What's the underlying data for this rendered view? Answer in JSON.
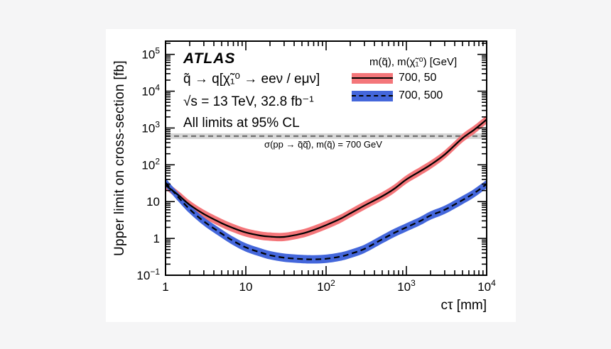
{
  "page": {
    "background_color": "#f5f5f6",
    "canvas_color": "#ffffff"
  },
  "chart_data": {
    "type": "line",
    "title": "ATLAS upper limit on cross-section vs cτ",
    "annotations": {
      "experiment": "ATLAS",
      "process": "q̃ → q[χ̃₁⁰ → eeν / eμν]",
      "energy_lumi": "√s = 13 TeV, 32.8 fb⁻¹",
      "cl_note": "All limits at 95% CL",
      "reference_label": "σ(pp → q̃q̃̄), m(q̃) = 700 GeV"
    },
    "x_axis": {
      "label": "cτ [mm]",
      "scale": "log",
      "range": [
        1,
        10000
      ],
      "ticks": [
        {
          "value": 1,
          "label": "1"
        },
        {
          "value": 10,
          "label": "10"
        },
        {
          "value": 100,
          "label": "10^2"
        },
        {
          "value": 1000,
          "label": "10^3"
        },
        {
          "value": 10000,
          "label": "10^4"
        }
      ]
    },
    "y_axis": {
      "label": "Upper limit on cross-section [fb]",
      "scale": "log",
      "range": [
        0.1,
        230000
      ],
      "ticks": [
        {
          "value": 0.1,
          "label": "10^-1"
        },
        {
          "value": 1,
          "label": "1"
        },
        {
          "value": 10,
          "label": "10"
        },
        {
          "value": 100,
          "label": "10^2"
        },
        {
          "value": 1000,
          "label": "10^3"
        },
        {
          "value": 10000,
          "label": "10^4"
        },
        {
          "value": 100000,
          "label": "10^5"
        }
      ]
    },
    "reference_line": {
      "value_fb": 600,
      "style": "dashed",
      "line_color": "#8a8a8a",
      "band_color": "#d7d7d7"
    },
    "legend": {
      "header": "m(q̃), m(χ̃₁⁰) [GeV]",
      "position": "top-right",
      "entries": [
        {
          "label": "700, 50",
          "band_color": "#f4767a",
          "line_color": "#000000",
          "line_style": "solid"
        },
        {
          "label": "700, 500",
          "band_color": "#4467db",
          "line_color": "#000000",
          "line_style": "dashed"
        }
      ]
    },
    "series": [
      {
        "name": "700, 50",
        "band_color": "#f4767a",
        "line_style": "solid",
        "band_ratio": 1.3,
        "x": [
          1,
          1.5,
          2,
          3,
          5,
          7,
          10,
          15,
          20,
          30,
          50,
          70,
          100,
          150,
          200,
          300,
          500,
          700,
          1000,
          1500,
          2000,
          3000,
          5000,
          7000,
          10000
        ],
        "y": [
          28,
          14,
          8.2,
          4.6,
          2.6,
          1.9,
          1.45,
          1.2,
          1.12,
          1.1,
          1.35,
          1.7,
          2.3,
          3.4,
          4.8,
          7.8,
          14,
          22,
          40,
          68,
          100,
          190,
          530,
          900,
          1700
        ]
      },
      {
        "name": "700, 500",
        "band_color": "#4467db",
        "line_style": "dashed",
        "band_ratio": 1.3,
        "x": [
          1,
          1.5,
          2,
          3,
          5,
          7,
          10,
          15,
          20,
          30,
          50,
          70,
          100,
          150,
          200,
          300,
          500,
          700,
          1000,
          1500,
          2000,
          3000,
          5000,
          7000,
          10000
        ],
        "y": [
          33,
          12,
          6.2,
          2.9,
          1.35,
          0.85,
          0.57,
          0.42,
          0.35,
          0.3,
          0.275,
          0.27,
          0.28,
          0.32,
          0.38,
          0.52,
          0.95,
          1.4,
          2.0,
          3.0,
          4.2,
          6.0,
          11,
          17,
          30
        ]
      }
    ],
    "grid": false
  }
}
